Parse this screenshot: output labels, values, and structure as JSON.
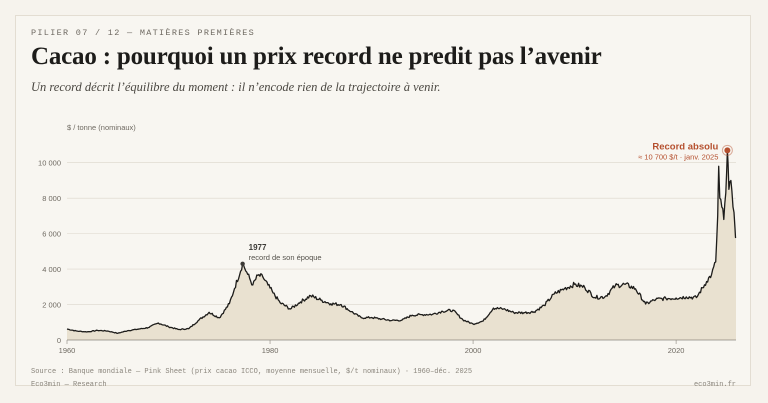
{
  "header": {
    "kicker": "PILIER 07 / 12 — MATIÈRES PREMIÈRES",
    "title": "Cacao : pourquoi un prix record ne predit pas l’avenir",
    "subtitle": "Un record décrit l’équilibre du moment : il n’encode rien de la trajectoire à venir."
  },
  "footer": {
    "source": "Source : Banque mondiale — Pink Sheet (prix cacao ICCO, moyenne mensuelle, $/t nominaux) · 1960–déc. 2025",
    "brand": "Eco3min — Research",
    "site": "eco3min.fr"
  },
  "colors": {
    "line": "#1d1c1a",
    "area": "#e9e1d0",
    "grid": "#dcd6cb",
    "accent": "#b5502f"
  },
  "chart_data": {
    "type": "area",
    "ylabel": "$ / tonne (nominaux)",
    "xlabel": "",
    "xlim": [
      1960,
      2025.9
    ],
    "ylim": [
      0,
      11000
    ],
    "x_ticks": [
      1960,
      1980,
      2000,
      2020
    ],
    "x_tick_labels": [
      "1960",
      "1980",
      "2000",
      "2020"
    ],
    "y_ticks": [
      0,
      2000,
      4000,
      6000,
      8000,
      10000
    ],
    "y_tick_labels": [
      "0",
      "2 000",
      "4 000",
      "6 000",
      "8 000",
      "10 000"
    ],
    "grid": true,
    "series": [
      {
        "x": [
          1960,
          1961,
          1962,
          1963,
          1964,
          1965,
          1966,
          1967,
          1968,
          1969,
          1970,
          1971,
          1972,
          1973,
          1974,
          1975,
          1976,
          1976.5,
          1977.3,
          1977.8,
          1978.3,
          1978.8,
          1979.3,
          1979.8,
          1980.3,
          1981,
          1982,
          1983,
          1984,
          1985,
          1986,
          1987,
          1988,
          1989,
          1990,
          1991,
          1992,
          1993,
          1994,
          1995,
          1996,
          1997,
          1998,
          1999,
          2000,
          2001,
          2002,
          2003,
          2004,
          2005,
          2006,
          2007,
          2008,
          2009,
          2010,
          2011,
          2012,
          2013,
          2014,
          2015,
          2016,
          2017,
          2018,
          2019,
          2020,
          2021,
          2022,
          2023,
          2023.5,
          2023.9,
          2024.1,
          2024.2,
          2024.3,
          2024.5,
          2024.7,
          2024.9,
          2025.05,
          2025.2,
          2025.4,
          2025.6,
          2025.8,
          2025.9
        ],
        "values": [
          620,
          500,
          460,
          540,
          510,
          380,
          530,
          610,
          700,
          960,
          750,
          590,
          640,
          1130,
          1560,
          1250,
          2050,
          2900,
          4300,
          3700,
          3100,
          3650,
          3550,
          3100,
          2650,
          2100,
          1750,
          2150,
          2500,
          2250,
          2050,
          2000,
          1600,
          1250,
          1270,
          1180,
          1100,
          1120,
          1400,
          1430,
          1450,
          1620,
          1680,
          1140,
          900,
          1070,
          1800,
          1750,
          1550,
          1540,
          1590,
          1950,
          2600,
          2900,
          3140,
          2970,
          2400,
          2440,
          3060,
          3140,
          2890,
          2030,
          2290,
          2340,
          2370,
          2430,
          2390,
          3300,
          3700,
          4400,
          7000,
          9800,
          8000,
          7500,
          6800,
          8300,
          10700,
          8500,
          9000,
          7500,
          6300,
          5800
        ]
      }
    ],
    "annotations": [
      {
        "x": 1977.3,
        "y": 4300,
        "label": "1977",
        "text": "record de son époque"
      },
      {
        "x": 2025.05,
        "y": 10700,
        "label": "Record absolu",
        "text": "≈ 10 700 $/t · janv. 2025"
      }
    ]
  }
}
